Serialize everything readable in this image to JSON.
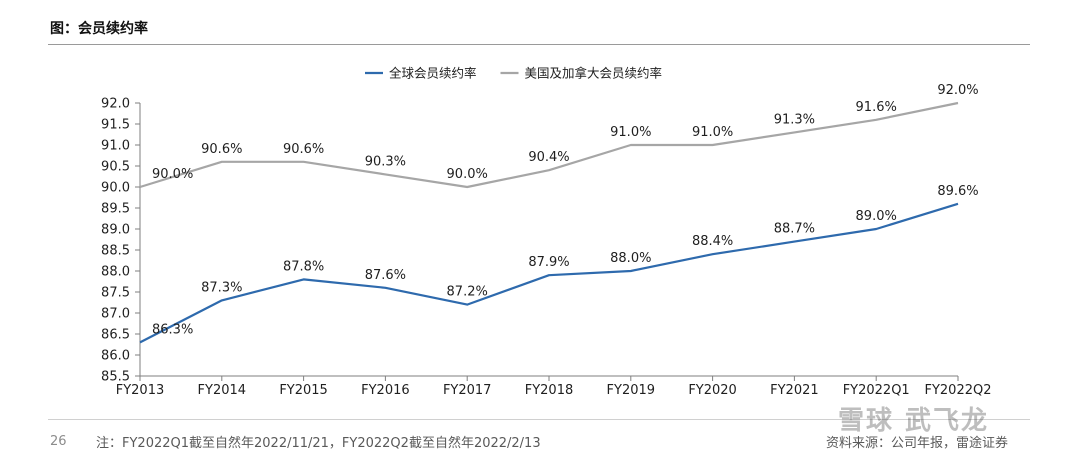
{
  "header": {
    "title": "图：会员续约率"
  },
  "footer": {
    "page_number": "26",
    "note": "注：FY2022Q1截至自然年2022/11/21，FY2022Q2截至自然年2022/2/13",
    "source": "资料来源：公司年报，雷途证券",
    "watermark": "雪球 武飞龙"
  },
  "colors": {
    "global": "#2e6aad",
    "us_canada": "#a6a6a6"
  },
  "chart_data": {
    "type": "line",
    "title": "",
    "xlabel": "",
    "ylabel": "",
    "categories": [
      "FY2013",
      "FY2014",
      "FY2015",
      "FY2016",
      "FY2017",
      "FY2018",
      "FY2019",
      "FY2020",
      "FY2021",
      "FY2022Q1",
      "FY2022Q2"
    ],
    "ylim": [
      85.5,
      92.0
    ],
    "yticks": [
      "92.0",
      "91.5",
      "91.0",
      "90.5",
      "90.0",
      "89.5",
      "89.0",
      "88.5",
      "88.0",
      "87.5",
      "87.0",
      "86.5",
      "86.0",
      "85.5"
    ],
    "legend_position": "top-center",
    "grid": false,
    "series": [
      {
        "name": "全球会员续约率",
        "color": "#2e6aad",
        "values": [
          86.3,
          87.3,
          87.8,
          87.6,
          87.2,
          87.9,
          88.0,
          88.4,
          88.7,
          89.0,
          89.6
        ],
        "labels": [
          "86.3%",
          "87.3%",
          "87.8%",
          "87.6%",
          "87.2%",
          "87.9%",
          "88.0%",
          "88.4%",
          "88.7%",
          "89.0%",
          "89.6%"
        ]
      },
      {
        "name": "美国及加拿大会员续约率",
        "color": "#a6a6a6",
        "values": [
          90.0,
          90.6,
          90.6,
          90.3,
          90.0,
          90.4,
          91.0,
          91.0,
          91.3,
          91.6,
          92.0
        ],
        "labels": [
          "90.0%",
          "90.6%",
          "90.6%",
          "90.3%",
          "90.0%",
          "90.4%",
          "91.0%",
          "91.0%",
          "91.3%",
          "91.6%",
          "92.0%"
        ]
      }
    ]
  }
}
